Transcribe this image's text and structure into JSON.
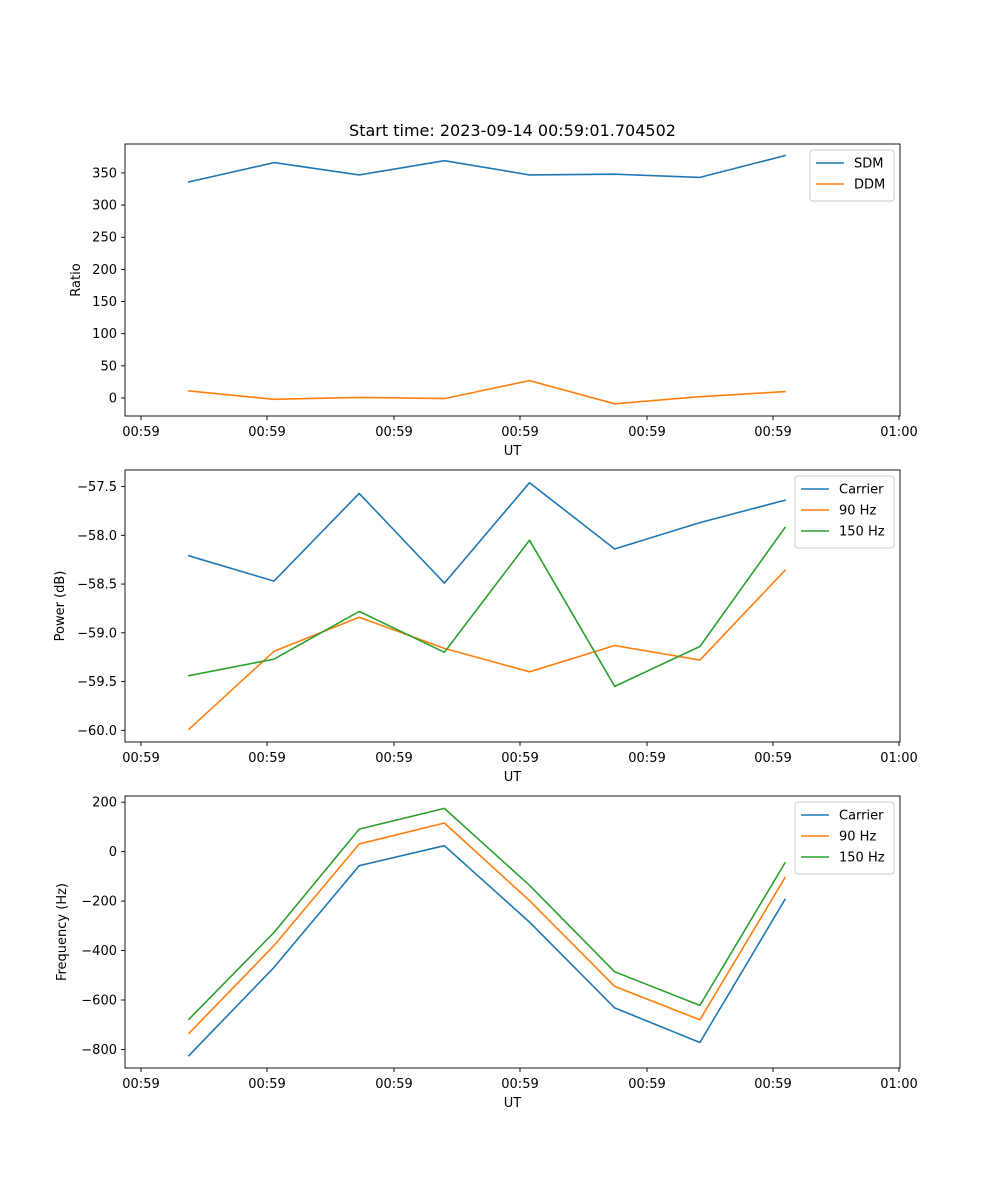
{
  "chart_data": [
    {
      "type": "line",
      "title": "Start time: 2023-09-14 00:59:01.704502",
      "xlabel": "UT",
      "ylabel": "Ratio",
      "x_tick_labels": [
        "00:59",
        "00:59",
        "00:59",
        "00:59",
        "00:59",
        "00:59",
        "01:00"
      ],
      "x": [
        1,
        2,
        3,
        4,
        5,
        6,
        7,
        8
      ],
      "xlim": [
        0.25,
        9.35
      ],
      "ylim": [
        -28,
        395
      ],
      "yticks": [
        0,
        50,
        100,
        150,
        200,
        250,
        300,
        350
      ],
      "legend_position": "upper right",
      "series": [
        {
          "name": "SDM",
          "color": "#1f77b4",
          "values": [
            336,
            366,
            347,
            369,
            347,
            348,
            343,
            377
          ]
        },
        {
          "name": "DDM",
          "color": "#ff7f0e",
          "values": [
            11,
            -2,
            1,
            -1,
            27,
            -9,
            2,
            10
          ]
        }
      ]
    },
    {
      "type": "line",
      "title": "",
      "xlabel": "UT",
      "ylabel": "Power (dB)",
      "x_tick_labels": [
        "00:59",
        "00:59",
        "00:59",
        "00:59",
        "00:59",
        "00:59",
        "01:00"
      ],
      "x": [
        1,
        2,
        3,
        4,
        5,
        6,
        7,
        8
      ],
      "xlim": [
        0.25,
        9.35
      ],
      "ylim": [
        -60.12,
        -57.33
      ],
      "yticks": [
        -60.0,
        -59.5,
        -59.0,
        -58.5,
        -58.0,
        -57.5
      ],
      "legend_position": "upper right",
      "series": [
        {
          "name": "Carrier",
          "color": "#1f77b4",
          "values": [
            -58.21,
            -58.47,
            -57.57,
            -58.49,
            -57.46,
            -58.14,
            -57.87,
            -57.64
          ]
        },
        {
          "name": "90 Hz",
          "color": "#ff7f0e",
          "values": [
            -59.99,
            -59.19,
            -58.84,
            -59.16,
            -59.4,
            -59.13,
            -59.28,
            -58.36
          ]
        },
        {
          "name": "150 Hz",
          "color": "#2ca02c",
          "values": [
            -59.44,
            -59.27,
            -58.78,
            -59.2,
            -58.05,
            -59.55,
            -59.14,
            -57.92
          ]
        }
      ]
    },
    {
      "type": "line",
      "title": "",
      "xlabel": "UT",
      "ylabel": "Frequency (Hz)",
      "x_tick_labels": [
        "00:59",
        "00:59",
        "00:59",
        "00:59",
        "00:59",
        "00:59",
        "01:00"
      ],
      "x": [
        1,
        2,
        3,
        4,
        5,
        6,
        7,
        8
      ],
      "xlim": [
        0.25,
        9.35
      ],
      "ylim": [
        -875,
        225
      ],
      "yticks": [
        -800,
        -600,
        -400,
        -200,
        0,
        200
      ],
      "legend_position": "upper right",
      "series": [
        {
          "name": "Carrier",
          "color": "#1f77b4",
          "values": [
            -825,
            -468,
            -57,
            24,
            -285,
            -632,
            -772,
            -193
          ]
        },
        {
          "name": "90 Hz",
          "color": "#ff7f0e",
          "values": [
            -735,
            -380,
            31,
            116,
            -198,
            -545,
            -680,
            -105
          ]
        },
        {
          "name": "150 Hz",
          "color": "#2ca02c",
          "values": [
            -678,
            -327,
            91,
            175,
            -136,
            -486,
            -622,
            -45
          ]
        }
      ]
    }
  ]
}
